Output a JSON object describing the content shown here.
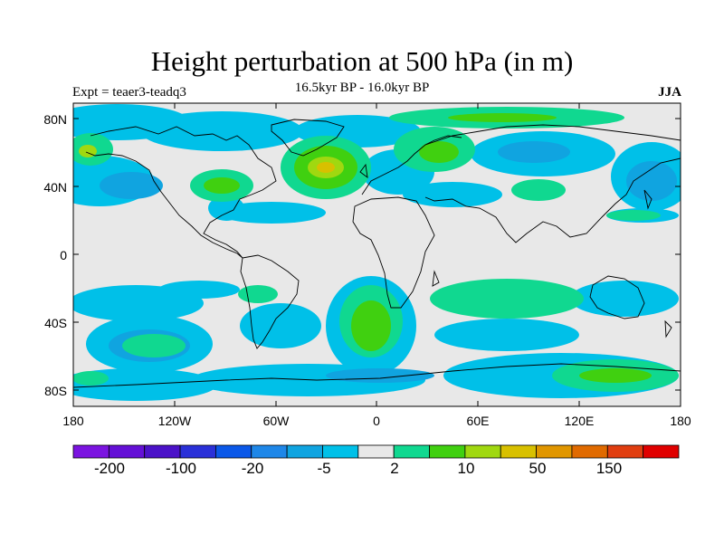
{
  "chart_data": {
    "type": "map-contour",
    "title": "Height perturbation at 500 hPa (in m)",
    "subtitle": "16.5kyr BP - 16.0kyr BP",
    "left_label": "Expt = teaer3-teadq3",
    "right_label": "JJA",
    "lat_ticks": [
      "80N",
      "40N",
      "0",
      "40S",
      "80S"
    ],
    "lon_ticks": [
      "180",
      "120W",
      "60W",
      "0",
      "60E",
      "120E",
      "180"
    ],
    "colorbar": {
      "colors": [
        "#7B14E0",
        "#6410D6",
        "#4B12C8",
        "#2A30D8",
        "#0B58E8",
        "#1F87E8",
        "#10A4E0",
        "#00C0E8",
        "#E8E8E8",
        "#10D890",
        "#40D010",
        "#A0D810",
        "#D8C000",
        "#E09600",
        "#E06A00",
        "#E03E10",
        "#E00000"
      ],
      "labels": [
        "-200",
        "-100",
        "-20",
        "-5",
        "2",
        "10",
        "50",
        "150"
      ]
    }
  }
}
